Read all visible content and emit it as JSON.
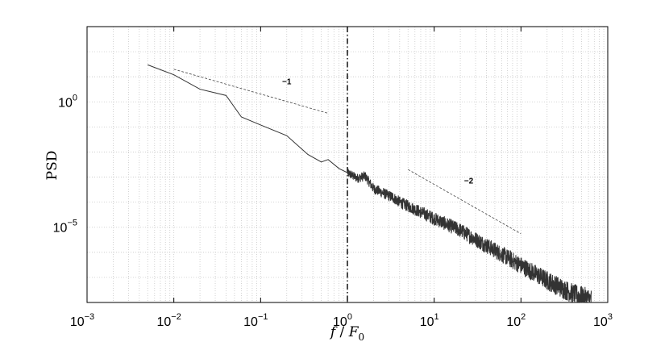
{
  "chart_data": {
    "type": "line",
    "title": "",
    "xlabel": "f / F0",
    "xlabel_italic_base": "f",
    "xlabel_sep": " / ",
    "xlabel_F": "F",
    "xlabel_sub": "0",
    "ylabel": "PSD",
    "xscale": "log",
    "yscale": "log",
    "xlim": [
      0.001,
      1000
    ],
    "ylim": [
      1e-08,
      1000
    ],
    "grid": true,
    "x_ticks": [
      {
        "value": 0.001,
        "base": "10",
        "exp": "−3"
      },
      {
        "value": 0.01,
        "base": "10",
        "exp": "−2"
      },
      {
        "value": 0.1,
        "base": "10",
        "exp": "−1"
      },
      {
        "value": 1,
        "base": "10",
        "exp": "0"
      },
      {
        "value": 10,
        "base": "10",
        "exp": "1"
      },
      {
        "value": 100,
        "base": "10",
        "exp": "2"
      },
      {
        "value": 1000,
        "base": "10",
        "exp": "3"
      }
    ],
    "y_ticks": [
      {
        "value": 1,
        "base": "10",
        "exp": "0"
      },
      {
        "value": 1e-05,
        "base": "10",
        "exp": "−5"
      }
    ],
    "vline": {
      "x": 1,
      "style": "dash-dot"
    },
    "series": [
      {
        "style": "solid",
        "color": "#333333",
        "points": [
          [
            0.005,
            30
          ],
          [
            0.01,
            12
          ],
          [
            0.02,
            3.2
          ],
          [
            0.04,
            1.8
          ],
          [
            0.06,
            0.25
          ],
          [
            0.1,
            0.12
          ],
          [
            0.2,
            0.045
          ],
          [
            0.35,
            0.008
          ],
          [
            0.5,
            0.004
          ],
          [
            0.6,
            0.005
          ],
          [
            0.8,
            0.0022
          ],
          [
            1.0,
            0.0015
          ],
          [
            1.3,
            0.0009
          ],
          [
            1.6,
            0.0011
          ],
          [
            2.0,
            0.00035
          ],
          [
            3.0,
            0.00018
          ],
          [
            3.3,
            0.00016
          ],
          [
            4.0,
            0.0001
          ],
          [
            5.0,
            7e-05
          ],
          [
            7.0,
            4e-05
          ],
          [
            10,
            2.2e-05
          ],
          [
            20,
            7.5e-06
          ],
          [
            50,
            1.2e-06
          ],
          [
            100,
            3e-07
          ],
          [
            200,
            7.5e-08
          ],
          [
            400,
            2.2e-08
          ],
          [
            650,
            1.3e-08
          ]
        ],
        "noise": {
          "from": 1.0,
          "to": 650
        }
      }
    ],
    "slope_guides": [
      {
        "label": "−1",
        "x": [
          0.01,
          0.6
        ],
        "y": [
          20,
          0.35
        ],
        "label_at": [
          0.2,
          5
        ]
      },
      {
        "label": "−2",
        "x": [
          5,
          100
        ],
        "y": [
          0.002,
          5.5e-06
        ],
        "label_at": [
          25,
          0.00055
        ]
      }
    ]
  }
}
